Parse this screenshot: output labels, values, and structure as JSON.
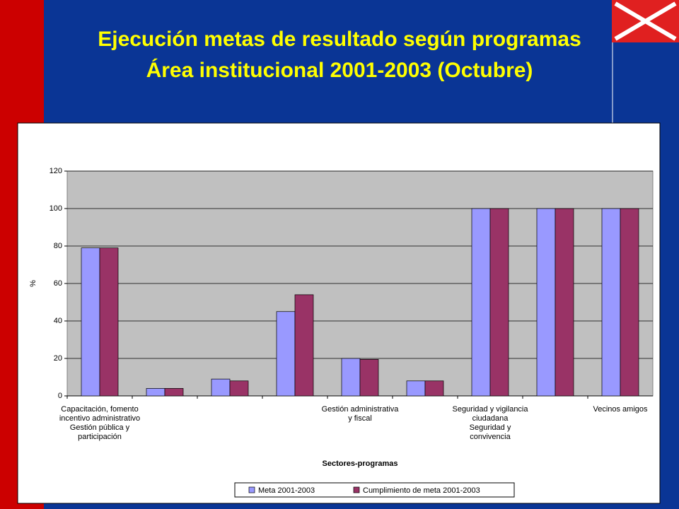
{
  "chart_data": {
    "type": "bar",
    "title": [
      "Ejecución metas de resultado según programas",
      "Área institucional 2001-2003 (Octubre)"
    ],
    "categories": [
      "Capacitación, fomento\nincentivo administrativo\nGestión pública y\nparticipación",
      null,
      null,
      null,
      "Gestión administrativa\ny fiscal",
      null,
      "Seguridad y vigilancia\nciudadana\nSeguridad y\nconvivencia",
      null,
      "Vecinos amigos"
    ],
    "series": [
      {
        "name": "Meta 2001-2003",
        "color": "#9999ff",
        "values": [
          79,
          4,
          9,
          45,
          20,
          8,
          100,
          100,
          100
        ]
      },
      {
        "name": "Cumplimiento de meta 2001-2003",
        "color": "#993366",
        "values": [
          79,
          4,
          8,
          54,
          19.5,
          8,
          100,
          100,
          100
        ]
      }
    ],
    "ylim": [
      0,
      120
    ],
    "yticks": [
      0,
      20,
      40,
      60,
      80,
      100,
      120
    ],
    "grid": true,
    "y_label": "%",
    "x_label": "Sectores-programas",
    "legend": "bottom"
  }
}
